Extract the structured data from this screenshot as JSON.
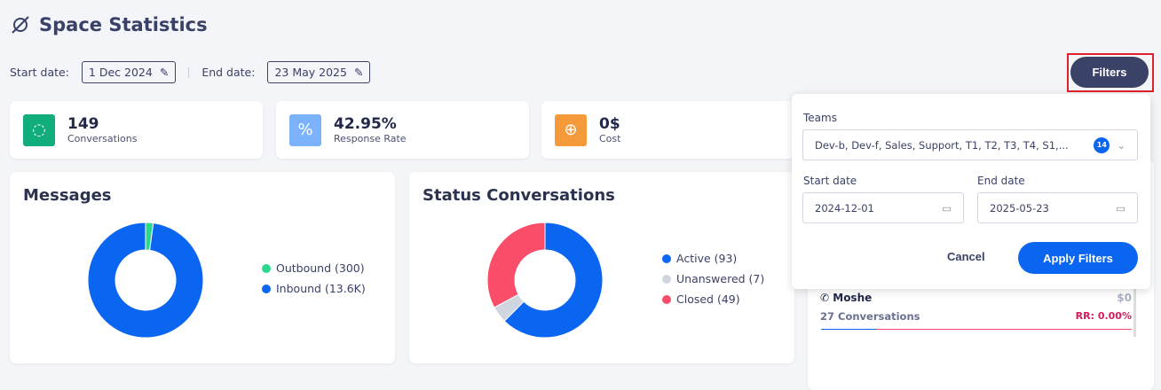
{
  "header": {
    "title": "Space Statistics",
    "icon": "planet-icon"
  },
  "dates": {
    "start_label": "Start date:",
    "start_value": "1 Dec 2024",
    "end_label": "End date:",
    "end_value": "23 May 2025"
  },
  "kpis": [
    {
      "value": "149",
      "label": "Conversations",
      "color": "#12ad7c",
      "icon": "chat-icon"
    },
    {
      "value": "42.95%",
      "label": "Response Rate",
      "color": "#7ab3fb",
      "icon": "percent-icon"
    },
    {
      "value": "0$",
      "label": "Cost",
      "color": "#f49a3a",
      "icon": "globe-icon"
    }
  ],
  "filters_button": "Filters",
  "charts": [
    {
      "title": "Messages",
      "legend": [
        "Outbound (300)",
        "Inbound (13.6K)"
      ]
    },
    {
      "title": "Status Conversations",
      "legend": [
        "Active (93)",
        "Unanswered (7)",
        "Closed (49)"
      ]
    }
  ],
  "chart_data": [
    {
      "type": "pie",
      "title": "Messages",
      "categories": [
        "Outbound",
        "Inbound"
      ],
      "values": [
        300,
        13600
      ],
      "colors": [
        "#2bd98b",
        "#0a66f0"
      ]
    },
    {
      "type": "pie",
      "title": "Status Conversations",
      "categories": [
        "Active",
        "Unanswered",
        "Closed"
      ],
      "values": [
        93,
        7,
        49
      ],
      "colors": [
        "#0a66f0",
        "#cfd6e0",
        "#fa4d6a"
      ]
    }
  ],
  "popup": {
    "teams_label": "Teams",
    "teams_value": "Dev-b, Dev-f, Sales, Support, T1, T2, T3, T4, S1,...",
    "teams_count": "14",
    "start_label": "Start date",
    "start_value": "2024-12-01",
    "end_label": "End date",
    "end_value": "2025-05-23",
    "cancel": "Cancel",
    "apply": "Apply Filters"
  },
  "agent": {
    "name": "Moshe",
    "cost": "$0",
    "conversations": "27 Conversations",
    "rr": "RR: 0.00%"
  }
}
